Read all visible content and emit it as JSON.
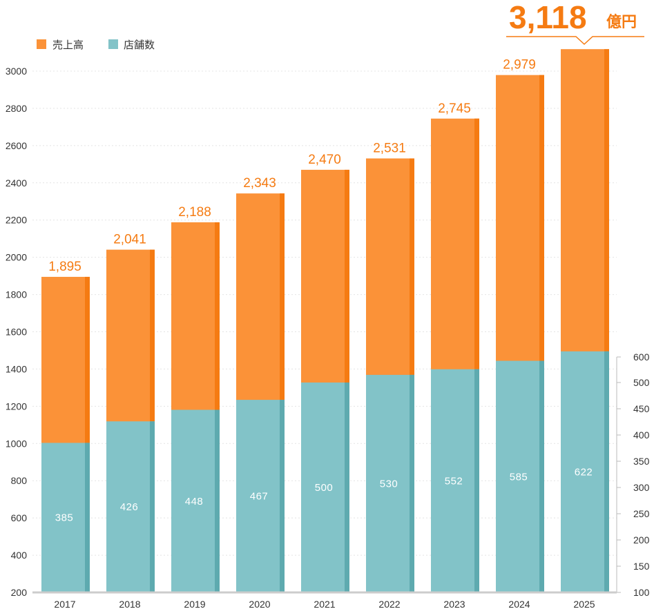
{
  "chart_data": {
    "type": "bar",
    "categories": [
      "2017",
      "2018",
      "2019",
      "2020",
      "2021",
      "2022",
      "2023",
      "2024",
      "2025"
    ],
    "series": [
      {
        "name": "売上高",
        "values": [
          1895,
          2041,
          2188,
          2343,
          2470,
          2531,
          2745,
          2979,
          3118
        ],
        "labels": [
          "1,895",
          "2,041",
          "2,188",
          "2,343",
          "2,470",
          "2,531",
          "2,745",
          "2,979",
          "3,118"
        ],
        "color": "#fb9238",
        "edge_color": "#f57b12",
        "axis": "left"
      },
      {
        "name": "店舗数",
        "values": [
          385,
          426,
          448,
          467,
          500,
          530,
          552,
          585,
          622
        ],
        "labels": [
          "385",
          "426",
          "448",
          "467",
          "500",
          "530",
          "552",
          "585",
          "622"
        ],
        "color": "#82c3c8",
        "edge_color": "#5eaaaf",
        "axis": "right"
      }
    ],
    "left_axis": {
      "min": 200,
      "max": 3000,
      "ticks": [
        "200",
        "400",
        "600",
        "800",
        "1000",
        "1200",
        "1400",
        "1600",
        "1800",
        "2000",
        "2200",
        "2400",
        "2600",
        "2800",
        "3000"
      ]
    },
    "right_axis": {
      "min": 100,
      "max": 600,
      "ticks": [
        "100",
        "150",
        "200",
        "250",
        "300",
        "350",
        "400",
        "450",
        "500",
        "600"
      ]
    },
    "highlight": {
      "value": "3,118",
      "unit": "億円"
    },
    "legend_position": "top-left",
    "grid": true
  }
}
